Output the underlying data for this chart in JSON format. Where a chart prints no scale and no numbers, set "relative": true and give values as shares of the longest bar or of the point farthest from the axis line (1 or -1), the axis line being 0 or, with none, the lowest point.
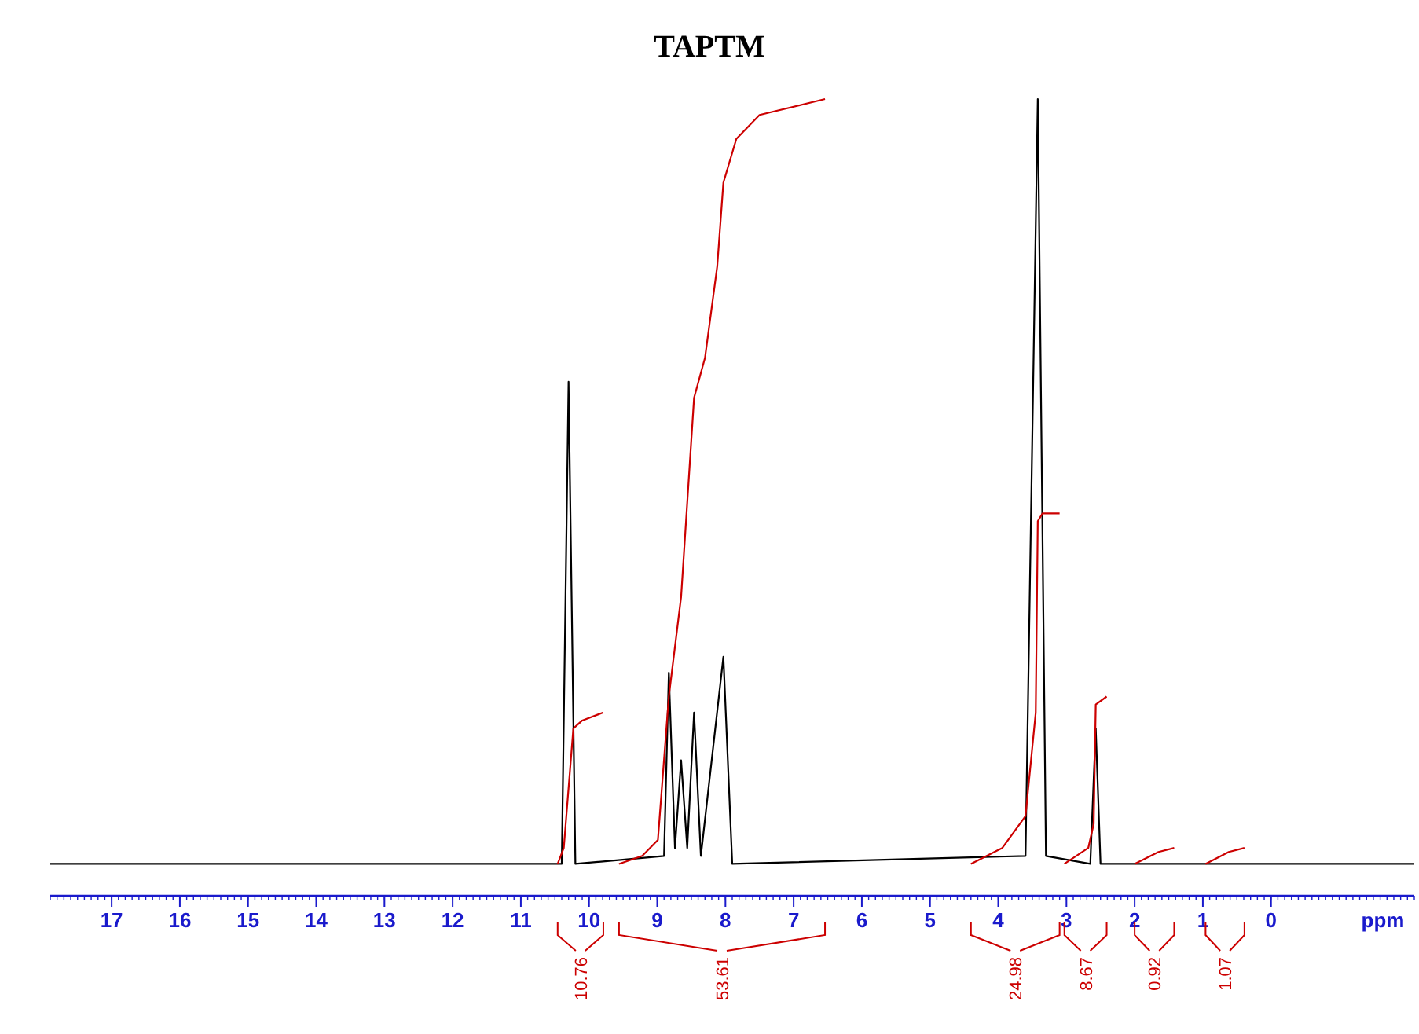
{
  "chart_data": {
    "type": "line",
    "title": "TAPTM",
    "xlabel": "ppm",
    "relative": true,
    "xlim": [
      17.9,
      -2.1
    ],
    "xticks": [
      17,
      16,
      15,
      14,
      13,
      12,
      11,
      10,
      9,
      8,
      7,
      6,
      5,
      4,
      3,
      2,
      1,
      0
    ],
    "marker": "none",
    "series": [
      {
        "color": "#000000",
        "x": [
          17.9,
          11.8,
          10.4,
          10.3,
          10.2,
          8.9,
          8.83,
          8.74,
          8.65,
          8.56,
          8.46,
          8.36,
          8.03,
          7.9,
          3.6,
          3.42,
          3.3,
          2.65,
          2.57,
          2.5,
          -2.1
        ],
        "values": [
          0.04,
          0.04,
          0.04,
          0.645,
          0.04,
          0.05,
          0.28,
          0.06,
          0.17,
          0.06,
          0.23,
          0.05,
          0.3,
          0.04,
          0.05,
          1,
          0.05,
          0.04,
          0.21,
          0.04,
          0.04
        ]
      },
      {
        "color": "#cc0000",
        "x": [
          10.46,
          10.37,
          10.3,
          10.23,
          10.1,
          9.79
        ],
        "values": [
          0.04,
          0.06,
          0.135,
          0.21,
          0.22,
          0.23
        ]
      },
      {
        "color": "#cc0000",
        "x": [
          9.56,
          9.22,
          8.99,
          8.83,
          8.65,
          8.46,
          8.3,
          8.12,
          8.03,
          7.84,
          7.5,
          6.54
        ],
        "values": [
          0.04,
          0.05,
          0.07,
          0.25,
          0.375,
          0.625,
          0.675,
          0.79,
          0.895,
          0.95,
          0.98,
          1
        ]
      },
      {
        "color": "#cc0000",
        "x": [
          4.4,
          3.94,
          3.6,
          3.45,
          3.42,
          3.35,
          3.1
        ],
        "values": [
          0.04,
          0.06,
          0.1,
          0.23,
          0.47,
          0.48,
          0.48
        ]
      },
      {
        "color": "#cc0000",
        "x": [
          3.03,
          2.68,
          2.6,
          2.57,
          2.41
        ],
        "values": [
          0.04,
          0.06,
          0.09,
          0.24,
          0.25
        ]
      },
      {
        "color": "#cc0000",
        "x": [
          2.0,
          1.65,
          1.42
        ],
        "values": [
          0.04,
          0.055,
          0.06
        ]
      },
      {
        "color": "#cc0000",
        "x": [
          0.96,
          0.62,
          0.39
        ],
        "values": [
          0.04,
          0.055,
          0.06
        ]
      }
    ],
    "annotations": [
      "10.76",
      "53.61",
      "24.98",
      "8.67",
      "0.92",
      "1.07"
    ]
  }
}
